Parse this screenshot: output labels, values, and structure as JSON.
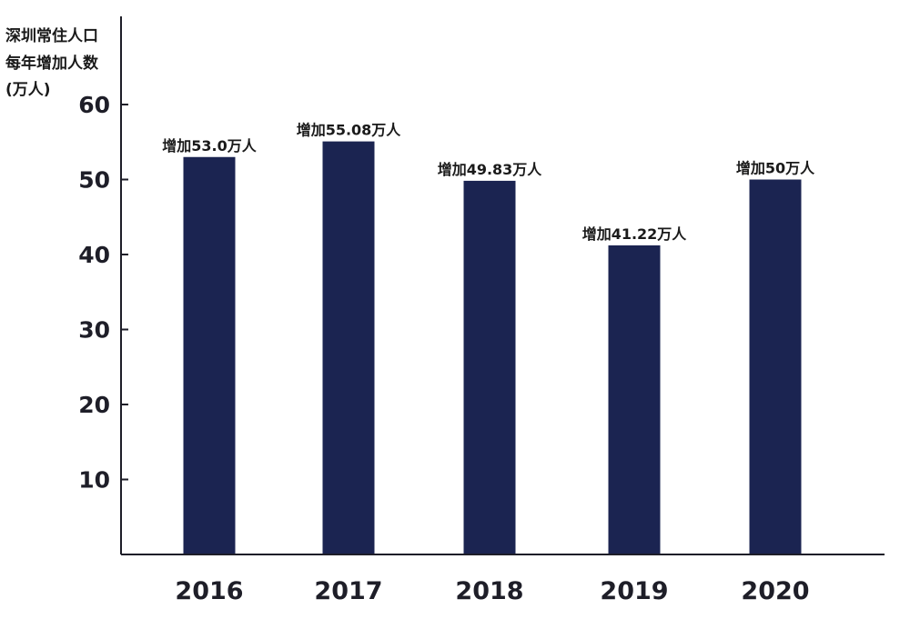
{
  "chart_data": {
    "type": "bar",
    "ylabel_lines": [
      "深圳常住人口",
      "每年增加人数",
      "(万人)"
    ],
    "categories": [
      "2016",
      "2017",
      "2018",
      "2019",
      "2020"
    ],
    "values": [
      53.0,
      55.08,
      49.83,
      41.22,
      50
    ],
    "data_labels": [
      "增加53.0万人",
      "增加55.08万人",
      "增加49.83万人",
      "增加41.22万人",
      "增加50万人"
    ],
    "yticks": [
      10,
      20,
      30,
      40,
      50,
      60
    ],
    "ylim": [
      0,
      60
    ],
    "grid": false,
    "bar_color": "#1b2451",
    "axis_color": "#1e1e28"
  }
}
